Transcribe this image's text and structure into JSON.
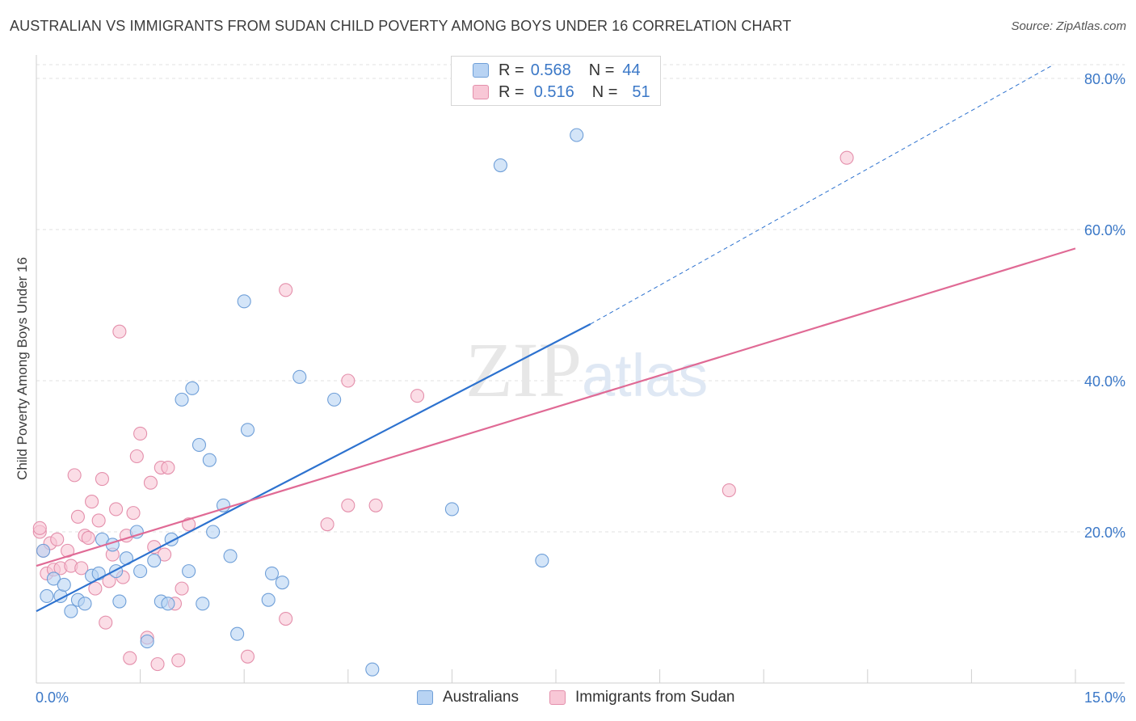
{
  "title": "AUSTRALIAN VS IMMIGRANTS FROM SUDAN CHILD POVERTY AMONG BOYS UNDER 16 CORRELATION CHART",
  "source": "Source: ZipAtlas.com",
  "watermark": {
    "zip": "ZIP",
    "atlas": "atlas"
  },
  "legend": {
    "r_label": "R =",
    "n_label": "N =",
    "series1": {
      "r": "0.568",
      "n": "44"
    },
    "series2": {
      "r": "0.516",
      "n": "51"
    }
  },
  "chart_data": {
    "type": "scatter",
    "title": "AUSTRALIAN VS IMMIGRANTS FROM SUDAN CHILD POVERTY AMONG BOYS UNDER 16 CORRELATION CHART",
    "xlabel": "",
    "ylabel": "Child Poverty Among Boys Under 16",
    "xlim": [
      0,
      15
    ],
    "ylim": [
      0,
      80
    ],
    "grid": true,
    "x_tick_labels": [
      "0.0%",
      "15.0%"
    ],
    "y_tick_labels": [
      "20.0%",
      "40.0%",
      "60.0%",
      "80.0%"
    ],
    "y_ticks": [
      20,
      40,
      60,
      80
    ],
    "legend_position": "bottom",
    "series": [
      {
        "name": "Australians",
        "color": "#6f9fd8",
        "fill": "#b8d3f3",
        "line_color": "#2d72cf",
        "trend": {
          "x": [
            0,
            8.0
          ],
          "y": [
            9.5,
            47.5
          ],
          "dashed_to": [
            15,
            80
          ]
        },
        "points": [
          [
            0.1,
            17.5
          ],
          [
            0.15,
            11.5
          ],
          [
            0.25,
            13.8
          ],
          [
            0.35,
            11.5
          ],
          [
            0.4,
            13.0
          ],
          [
            0.5,
            9.5
          ],
          [
            0.6,
            11.0
          ],
          [
            0.7,
            10.5
          ],
          [
            0.8,
            14.2
          ],
          [
            0.9,
            14.5
          ],
          [
            0.95,
            19.0
          ],
          [
            1.1,
            18.3
          ],
          [
            1.15,
            14.8
          ],
          [
            1.2,
            10.8
          ],
          [
            1.3,
            16.5
          ],
          [
            1.45,
            20.0
          ],
          [
            1.5,
            14.8
          ],
          [
            1.6,
            5.5
          ],
          [
            1.7,
            16.2
          ],
          [
            1.8,
            10.8
          ],
          [
            1.9,
            10.5
          ],
          [
            1.95,
            19.0
          ],
          [
            2.1,
            37.5
          ],
          [
            2.2,
            14.8
          ],
          [
            2.25,
            39.0
          ],
          [
            2.35,
            31.5
          ],
          [
            2.4,
            10.5
          ],
          [
            2.5,
            29.5
          ],
          [
            2.55,
            20.0
          ],
          [
            2.7,
            23.5
          ],
          [
            2.8,
            16.8
          ],
          [
            2.9,
            6.5
          ],
          [
            3.0,
            50.5
          ],
          [
            3.05,
            33.5
          ],
          [
            3.35,
            11.0
          ],
          [
            3.4,
            14.5
          ],
          [
            3.55,
            13.3
          ],
          [
            3.8,
            40.5
          ],
          [
            4.3,
            37.5
          ],
          [
            4.85,
            1.8
          ],
          [
            6.0,
            23.0
          ],
          [
            6.7,
            68.5
          ],
          [
            7.3,
            16.2
          ],
          [
            7.8,
            72.5
          ]
        ]
      },
      {
        "name": "Immigrants from Sudan",
        "color": "#e48fab",
        "fill": "#f8c7d6",
        "line_color": "#e06a95",
        "trend": {
          "x": [
            0,
            15
          ],
          "y": [
            15.5,
            57.5
          ]
        },
        "points": [
          [
            0.05,
            20.0
          ],
          [
            0.1,
            17.5
          ],
          [
            0.15,
            14.5
          ],
          [
            0.2,
            18.5
          ],
          [
            0.25,
            15.0
          ],
          [
            0.3,
            19.0
          ],
          [
            0.35,
            15.2
          ],
          [
            0.45,
            17.5
          ],
          [
            0.5,
            15.5
          ],
          [
            0.55,
            27.5
          ],
          [
            0.6,
            22.0
          ],
          [
            0.65,
            15.2
          ],
          [
            0.7,
            19.5
          ],
          [
            0.75,
            19.2
          ],
          [
            0.8,
            24.0
          ],
          [
            0.85,
            12.5
          ],
          [
            0.9,
            21.5
          ],
          [
            0.95,
            27.0
          ],
          [
            1.0,
            8.0
          ],
          [
            1.05,
            13.5
          ],
          [
            1.1,
            17.0
          ],
          [
            1.15,
            23.0
          ],
          [
            1.2,
            46.5
          ],
          [
            1.25,
            14.0
          ],
          [
            1.3,
            19.5
          ],
          [
            1.35,
            3.3
          ],
          [
            1.4,
            22.5
          ],
          [
            1.45,
            30.0
          ],
          [
            1.5,
            33.0
          ],
          [
            1.6,
            6.0
          ],
          [
            1.65,
            26.5
          ],
          [
            1.7,
            18.0
          ],
          [
            1.75,
            2.5
          ],
          [
            1.8,
            28.5
          ],
          [
            1.85,
            17.0
          ],
          [
            1.9,
            28.5
          ],
          [
            2.0,
            10.5
          ],
          [
            2.05,
            3.0
          ],
          [
            2.1,
            12.5
          ],
          [
            2.2,
            21.0
          ],
          [
            3.05,
            3.5
          ],
          [
            3.6,
            8.5
          ],
          [
            3.6,
            52.0
          ],
          [
            4.2,
            21.0
          ],
          [
            4.5,
            40.0
          ],
          [
            4.5,
            23.5
          ],
          [
            4.9,
            23.5
          ],
          [
            5.5,
            38.0
          ],
          [
            10.0,
            25.5
          ],
          [
            11.7,
            69.5
          ],
          [
            0.05,
            20.5
          ]
        ]
      }
    ]
  }
}
